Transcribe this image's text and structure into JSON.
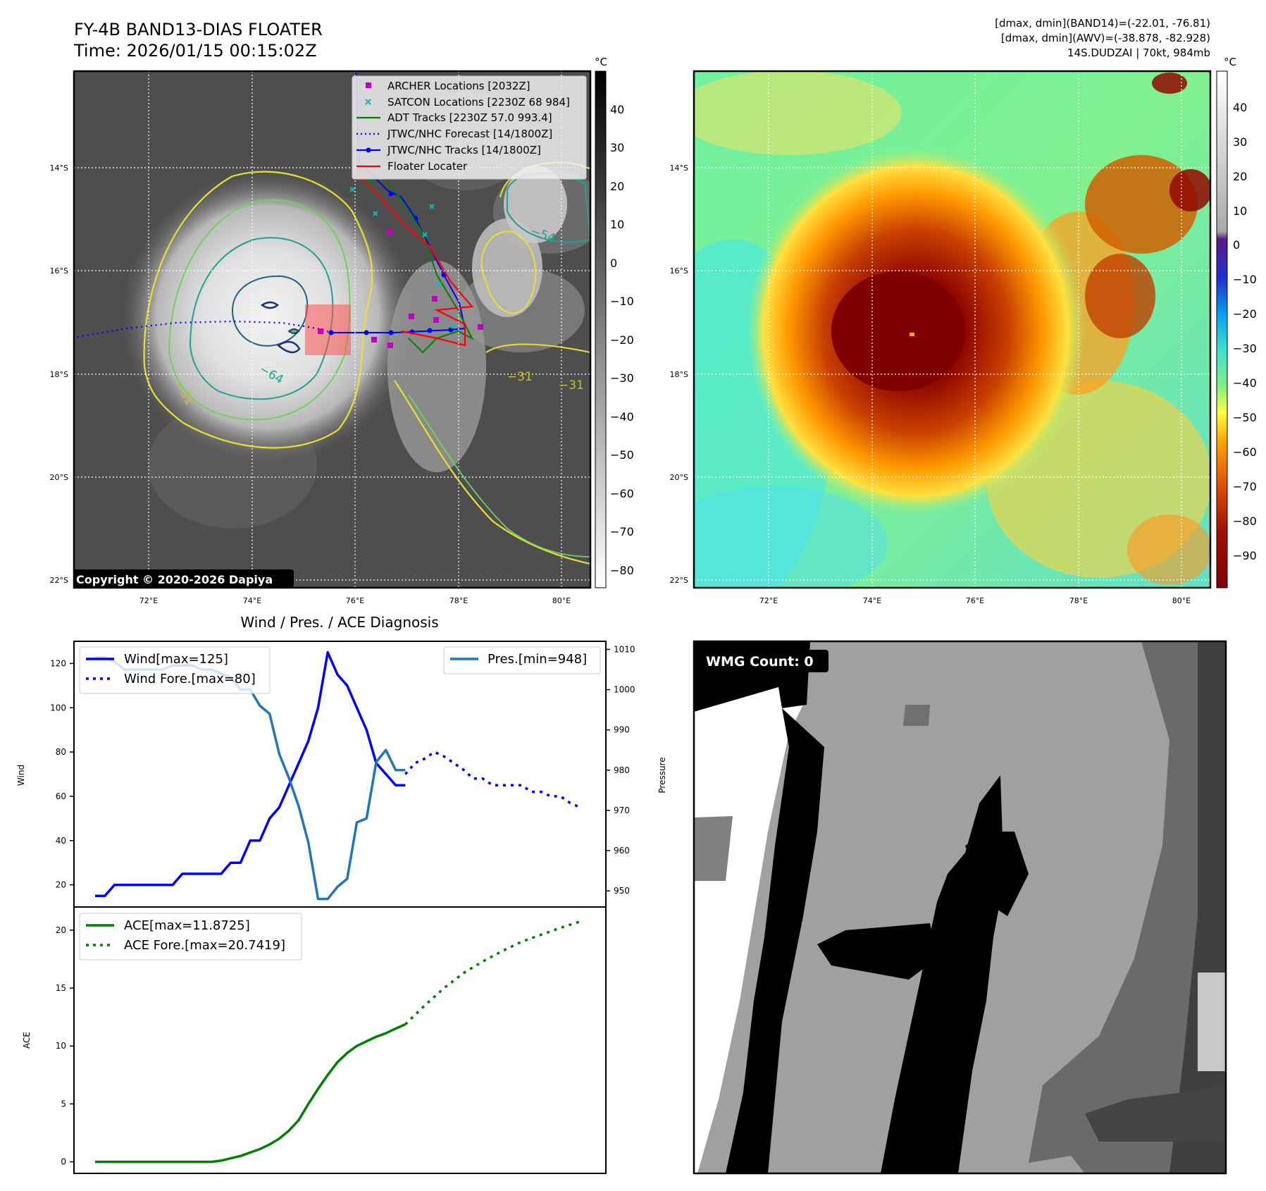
{
  "header": {
    "title_line1": "FY-4B BAND13-DIAS FLOATER",
    "title_line2": "Time: 2026/01/15 00:15:02Z",
    "right_line1": "[dmax, dmin](BAND14)=(-22.01, -76.81)",
    "right_line2": "[dmax, dmin](AWV)=(-38.878, -82.928)",
    "right_line3": "14S.DUDZAI | 70kt, 984mb"
  },
  "ir_panel": {
    "copyright": "Copyright © 2020-2026 Dapiya",
    "colorbar_unit": "°C",
    "colorbar_ticks": [
      "40",
      "30",
      "20",
      "10",
      "0",
      "−10",
      "−20",
      "−30",
      "−40",
      "−50",
      "−60",
      "−70",
      "−80"
    ],
    "lat_ticks": [
      "14°S",
      "16°S",
      "18°S",
      "20°S",
      "22°S"
    ],
    "lon_ticks": [
      "72°E",
      "74°E",
      "76°E",
      "78°E",
      "80°E"
    ],
    "contour_labels": [
      "−64",
      "−54",
      "−31",
      "−31",
      "−31"
    ],
    "legend": [
      {
        "label": "ARCHER Locations [2032Z]",
        "color": "#c000c0",
        "kind": "square"
      },
      {
        "label": "SATCON Locations [2230Z 68 984]",
        "color": "#00bfbf",
        "kind": "x"
      },
      {
        "label": "ADT Tracks [2230Z 57.0 993.4]",
        "color": "#008000",
        "kind": "line"
      },
      {
        "label": "JTWC/NHC Forecast [14/1800Z]",
        "color": "#0000ff",
        "kind": "dotted"
      },
      {
        "label": "JTWC/NHC Tracks [14/1800Z]",
        "color": "#0000ff",
        "kind": "line-dot"
      },
      {
        "label": "Floater Locater",
        "color": "#ff0000",
        "kind": "line"
      }
    ]
  },
  "wv_panel": {
    "colorbar_unit": "°C",
    "colorbar_ticks": [
      "40",
      "30",
      "20",
      "10",
      "0",
      "−10",
      "−20",
      "−30",
      "−40",
      "−50",
      "−60",
      "−70",
      "−80",
      "−90"
    ],
    "lat_ticks": [
      "14°S",
      "16°S",
      "18°S",
      "20°S",
      "22°S"
    ],
    "lon_ticks": [
      "72°E",
      "74°E",
      "76°E",
      "78°E",
      "80°E"
    ]
  },
  "diag": {
    "title": "Wind / Pres. / ACE Diagnosis",
    "wind_ylabel": "Wind",
    "pres_ylabel": "Pressure",
    "ace_ylabel": "ACE",
    "wind_legend": [
      "Wind[max=125]",
      "Wind Fore.[max=80]"
    ],
    "pres_legend": "Pres.[min=948]",
    "ace_legend": [
      "ACE[max=11.8725]",
      "ACE Fore.[max=20.7419]"
    ]
  },
  "wmg": {
    "label": "WMG Count: 0"
  },
  "chart_data": [
    {
      "type": "line",
      "title": "Wind / Pres. / ACE Diagnosis",
      "ylabel": "Wind",
      "ylim": [
        10,
        130
      ],
      "yticks": [
        20,
        40,
        60,
        80,
        100,
        120
      ],
      "series": [
        {
          "name": "Wind[max=125]",
          "color": "#0000ff",
          "style": "solid",
          "x": [
            0,
            1,
            2,
            3,
            4,
            5,
            6,
            7,
            8,
            9,
            10,
            11,
            12,
            13,
            14,
            15,
            16,
            17,
            18,
            19,
            20,
            21,
            22,
            23,
            24,
            25,
            26,
            27,
            28,
            29,
            30,
            31,
            32
          ],
          "values": [
            15,
            15,
            20,
            20,
            20,
            20,
            20,
            20,
            20,
            25,
            25,
            25,
            25,
            25,
            30,
            30,
            40,
            40,
            50,
            55,
            65,
            75,
            85,
            100,
            125,
            115,
            110,
            100,
            90,
            75,
            70,
            65,
            65
          ]
        },
        {
          "name": "Wind Fore.[max=80]",
          "color": "#0000ff",
          "style": "dotted",
          "x": [
            32,
            33,
            34,
            35,
            36,
            37,
            38,
            39,
            40,
            41,
            42,
            43,
            44,
            45,
            46,
            47,
            48,
            49,
            50
          ],
          "values": [
            70,
            75,
            77,
            80,
            78,
            75,
            72,
            68,
            68,
            65,
            65,
            65,
            65,
            62,
            62,
            60,
            60,
            57,
            55
          ]
        }
      ]
    },
    {
      "type": "line",
      "ylabel": "Pressure",
      "ylim": [
        946,
        1012
      ],
      "yticks": [
        950,
        960,
        970,
        980,
        990,
        1000,
        1010
      ],
      "series": [
        {
          "name": "Pres.[min=948]",
          "color": "#1f77b4",
          "style": "solid",
          "x": [
            0,
            1,
            2,
            3,
            4,
            5,
            6,
            7,
            8,
            9,
            10,
            11,
            12,
            13,
            14,
            15,
            16,
            17,
            18,
            19,
            20,
            21,
            22,
            23,
            24,
            25,
            26,
            27,
            28,
            29,
            30,
            31,
            32
          ],
          "values": [
            1008,
            1008,
            1007,
            1005,
            1005,
            1005,
            1005,
            1005,
            1006,
            1006,
            1006,
            1005,
            1005,
            1004,
            1003,
            1000,
            1000,
            996,
            994,
            984,
            978,
            971,
            962,
            948,
            948,
            951,
            953,
            967,
            968,
            982,
            985,
            980,
            980
          ]
        }
      ]
    },
    {
      "type": "line",
      "ylabel": "ACE",
      "ylim": [
        -1,
        22
      ],
      "yticks": [
        0,
        5,
        10,
        15,
        20
      ],
      "series": [
        {
          "name": "ACE[max=11.8725]",
          "color": "#008000",
          "style": "solid",
          "x": [
            0,
            2,
            4,
            6,
            8,
            10,
            12,
            13,
            14,
            15,
            16,
            17,
            18,
            19,
            20,
            21,
            22,
            23,
            24,
            25,
            26,
            27,
            28,
            29,
            30,
            31,
            32
          ],
          "values": [
            0,
            0,
            0,
            0,
            0,
            0,
            0,
            0.1,
            0.3,
            0.5,
            0.8,
            1.1,
            1.5,
            2.0,
            2.7,
            3.6,
            5.0,
            6.3,
            7.5,
            8.6,
            9.4,
            10.0,
            10.4,
            10.8,
            11.1,
            11.5,
            11.87
          ]
        },
        {
          "name": "ACE Fore.[max=20.7419]",
          "color": "#008000",
          "style": "dotted",
          "x": [
            32,
            34,
            36,
            38,
            40,
            42,
            44,
            46,
            48,
            50
          ],
          "values": [
            11.87,
            13.5,
            15.0,
            16.3,
            17.3,
            18.2,
            19.0,
            19.6,
            20.2,
            20.74
          ]
        }
      ]
    }
  ]
}
